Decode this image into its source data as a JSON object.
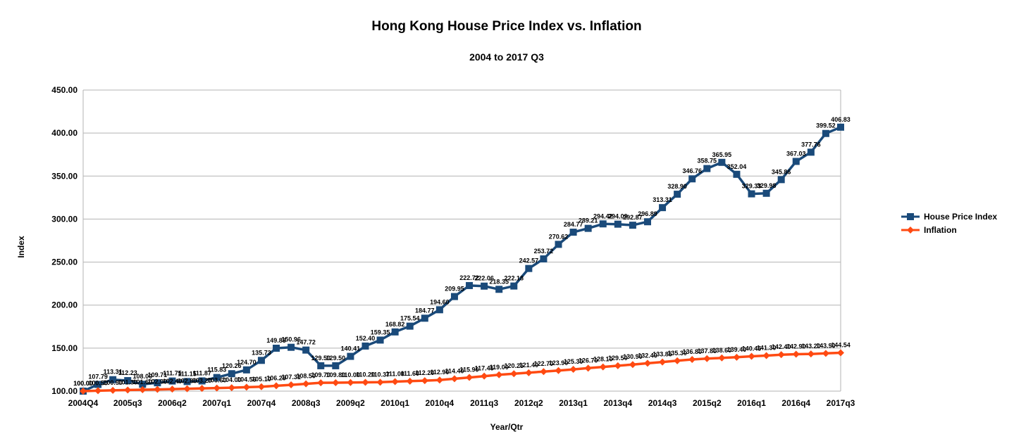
{
  "chart_data": {
    "type": "line",
    "title": "Hong Kong House Price Index vs. Inflation",
    "subtitle": "2004 to 2017 Q3",
    "xlabel": "Year/Qtr",
    "ylabel": "Index",
    "ylim": [
      100,
      450
    ],
    "yticks": [
      "100.00",
      "150.00",
      "200.00",
      "250.00",
      "300.00",
      "350.00",
      "400.00",
      "450.00"
    ],
    "ytick_values": [
      100,
      150,
      200,
      250,
      300,
      350,
      400,
      450
    ],
    "grid": true,
    "legend_position": "right",
    "x_tick_labels": [
      "2004Q4",
      "2005q3",
      "2006q2",
      "2007q1",
      "2007q4",
      "2008q3",
      "2009q2",
      "2010q1",
      "2010q4",
      "2011q3",
      "2012q2",
      "2013q1",
      "2013q4",
      "2014q3",
      "2015q2",
      "2016q1",
      "2016q4",
      "2017q3"
    ],
    "x_tick_positions": [
      0,
      3,
      6,
      9,
      12,
      15,
      18,
      21,
      24,
      27,
      30,
      33,
      36,
      39,
      42,
      45,
      48,
      51
    ],
    "point_count": 52,
    "series": [
      {
        "name": "House Price Index",
        "color": "#1a4a7a",
        "marker": "square",
        "values": [
          100.0,
          107.79,
          113.31,
          112.23,
          108.0,
          109.71,
          111.75,
          111.15,
          111.87,
          115.83,
          120.26,
          124.7,
          135.73,
          149.88,
          150.96,
          147.72,
          129.5,
          129.5,
          140.41,
          152.4,
          159.35,
          168.82,
          175.54,
          184.77,
          194.6,
          209.95,
          222.72,
          222.06,
          218.35,
          222.18,
          242.57,
          253.72,
          270.62,
          284.77,
          289.21,
          294.42,
          294.09,
          292.87,
          296.89,
          313.31,
          328.9,
          346.76,
          358.75,
          365.95,
          352.04,
          329.33,
          329.98,
          345.86,
          367.03,
          377.76,
          399.52,
          406.83
        ],
        "labels": [
          "100.00",
          "107.79",
          "113.31",
          "112.23",
          "108.00",
          "109.71",
          "111.75",
          "111.15",
          "111.87",
          "115.83",
          "120.26",
          "124.70",
          "135.73",
          "149.88",
          "150.96",
          "147.72",
          "129.50",
          "129.50",
          "140.41",
          "152.40",
          "159.35",
          "168.82",
          "175.54",
          "184.77",
          "194.60",
          "209.95",
          "222.72",
          "222.06",
          "218.35",
          "222.18",
          "242.57",
          "253.72",
          "270.62",
          "284.77",
          "289.21",
          "294.42",
          "294.09",
          "292.87",
          "296.89",
          "313.31",
          "328.90",
          "346.76",
          "358.75",
          "365.95",
          "352.04",
          "329.33",
          "329.98",
          "345.86",
          "367.03",
          "377.76",
          "399.52",
          "406.83"
        ]
      },
      {
        "name": "Inflation",
        "color": "#ff4a12",
        "marker": "diamond",
        "values": [
          100.0,
          100.5,
          100.9,
          101.3,
          101.6,
          102.0,
          102.4,
          102.8,
          103.2,
          103.6,
          104.0,
          104.56,
          105.1,
          106.25,
          107.31,
          108.5,
          109.7,
          109.8,
          110.0,
          110.2,
          110.37,
          111.0,
          111.6,
          112.2,
          112.9,
          114.4,
          115.9,
          117.45,
          119.0,
          120.25,
          121.4,
          122.7,
          123.9,
          125.3,
          126.7,
          128.1,
          129.5,
          130.9,
          132.4,
          133.85,
          135.3,
          136.8,
          137.8,
          138.6,
          139.4,
          140.45,
          141.3,
          142.4,
          142.9,
          143.2,
          143.9,
          144.54
        ],
        "labels": [
          "100.00",
          "100.50",
          "100.90",
          "101.30",
          "101.60",
          "102.00",
          "102.40",
          "102.80",
          "103.20",
          "103.60",
          "104.00",
          "104.56",
          "105.10",
          "106.25",
          "107.31",
          "108.50",
          "109.70",
          "109.80",
          "110.00",
          "110.20",
          "110.37",
          "111.00",
          "111.60",
          "112.20",
          "112.90",
          "114.40",
          "115.90",
          "117.45",
          "119.00",
          "120.25",
          "121.40",
          "122.70",
          "123.90",
          "125.30",
          "126.70",
          "128.10",
          "129.50",
          "130.90",
          "132.40",
          "133.85",
          "135.30",
          "136.80",
          "137.80",
          "138.60",
          "139.40",
          "140.45",
          "141.30",
          "142.40",
          "142.90",
          "143.20",
          "143.90",
          "144.54"
        ]
      }
    ]
  }
}
